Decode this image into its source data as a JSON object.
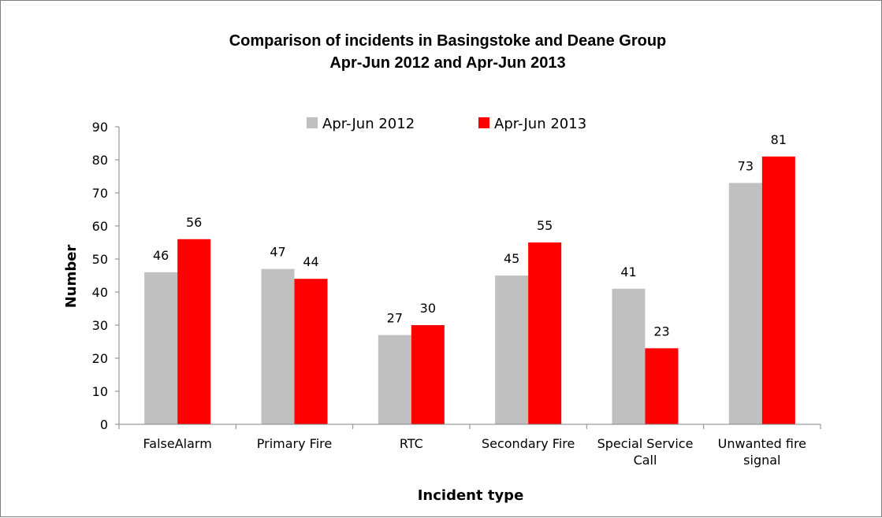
{
  "chart_data": {
    "type": "bar",
    "title": [
      "Comparison of incidents in Basingstoke and Deane Group",
      "Apr-Jun 2012 and Apr-Jun 2013"
    ],
    "xlabel": "Incident type",
    "ylabel": "Number",
    "ylim": [
      0,
      90
    ],
    "yticks": [
      "0",
      "10",
      "20",
      "30",
      "40",
      "50",
      "60",
      "70",
      "80",
      "90"
    ],
    "categories": [
      [
        "FalseAlarm"
      ],
      [
        "Primary Fire"
      ],
      [
        "RTC"
      ],
      [
        "Secondary Fire"
      ],
      [
        "Special Service",
        "Call"
      ],
      [
        "Unwanted fire",
        "signal"
      ]
    ],
    "series": [
      {
        "name": "Apr-Jun 2012",
        "color": "#c0c0c0",
        "values": [
          46,
          47,
          27,
          45,
          41,
          73
        ]
      },
      {
        "name": "Apr-Jun 2013",
        "color": "#ff0000",
        "values": [
          56,
          44,
          30,
          55,
          23,
          81
        ]
      }
    ],
    "legend_position": "top",
    "grid": false
  }
}
